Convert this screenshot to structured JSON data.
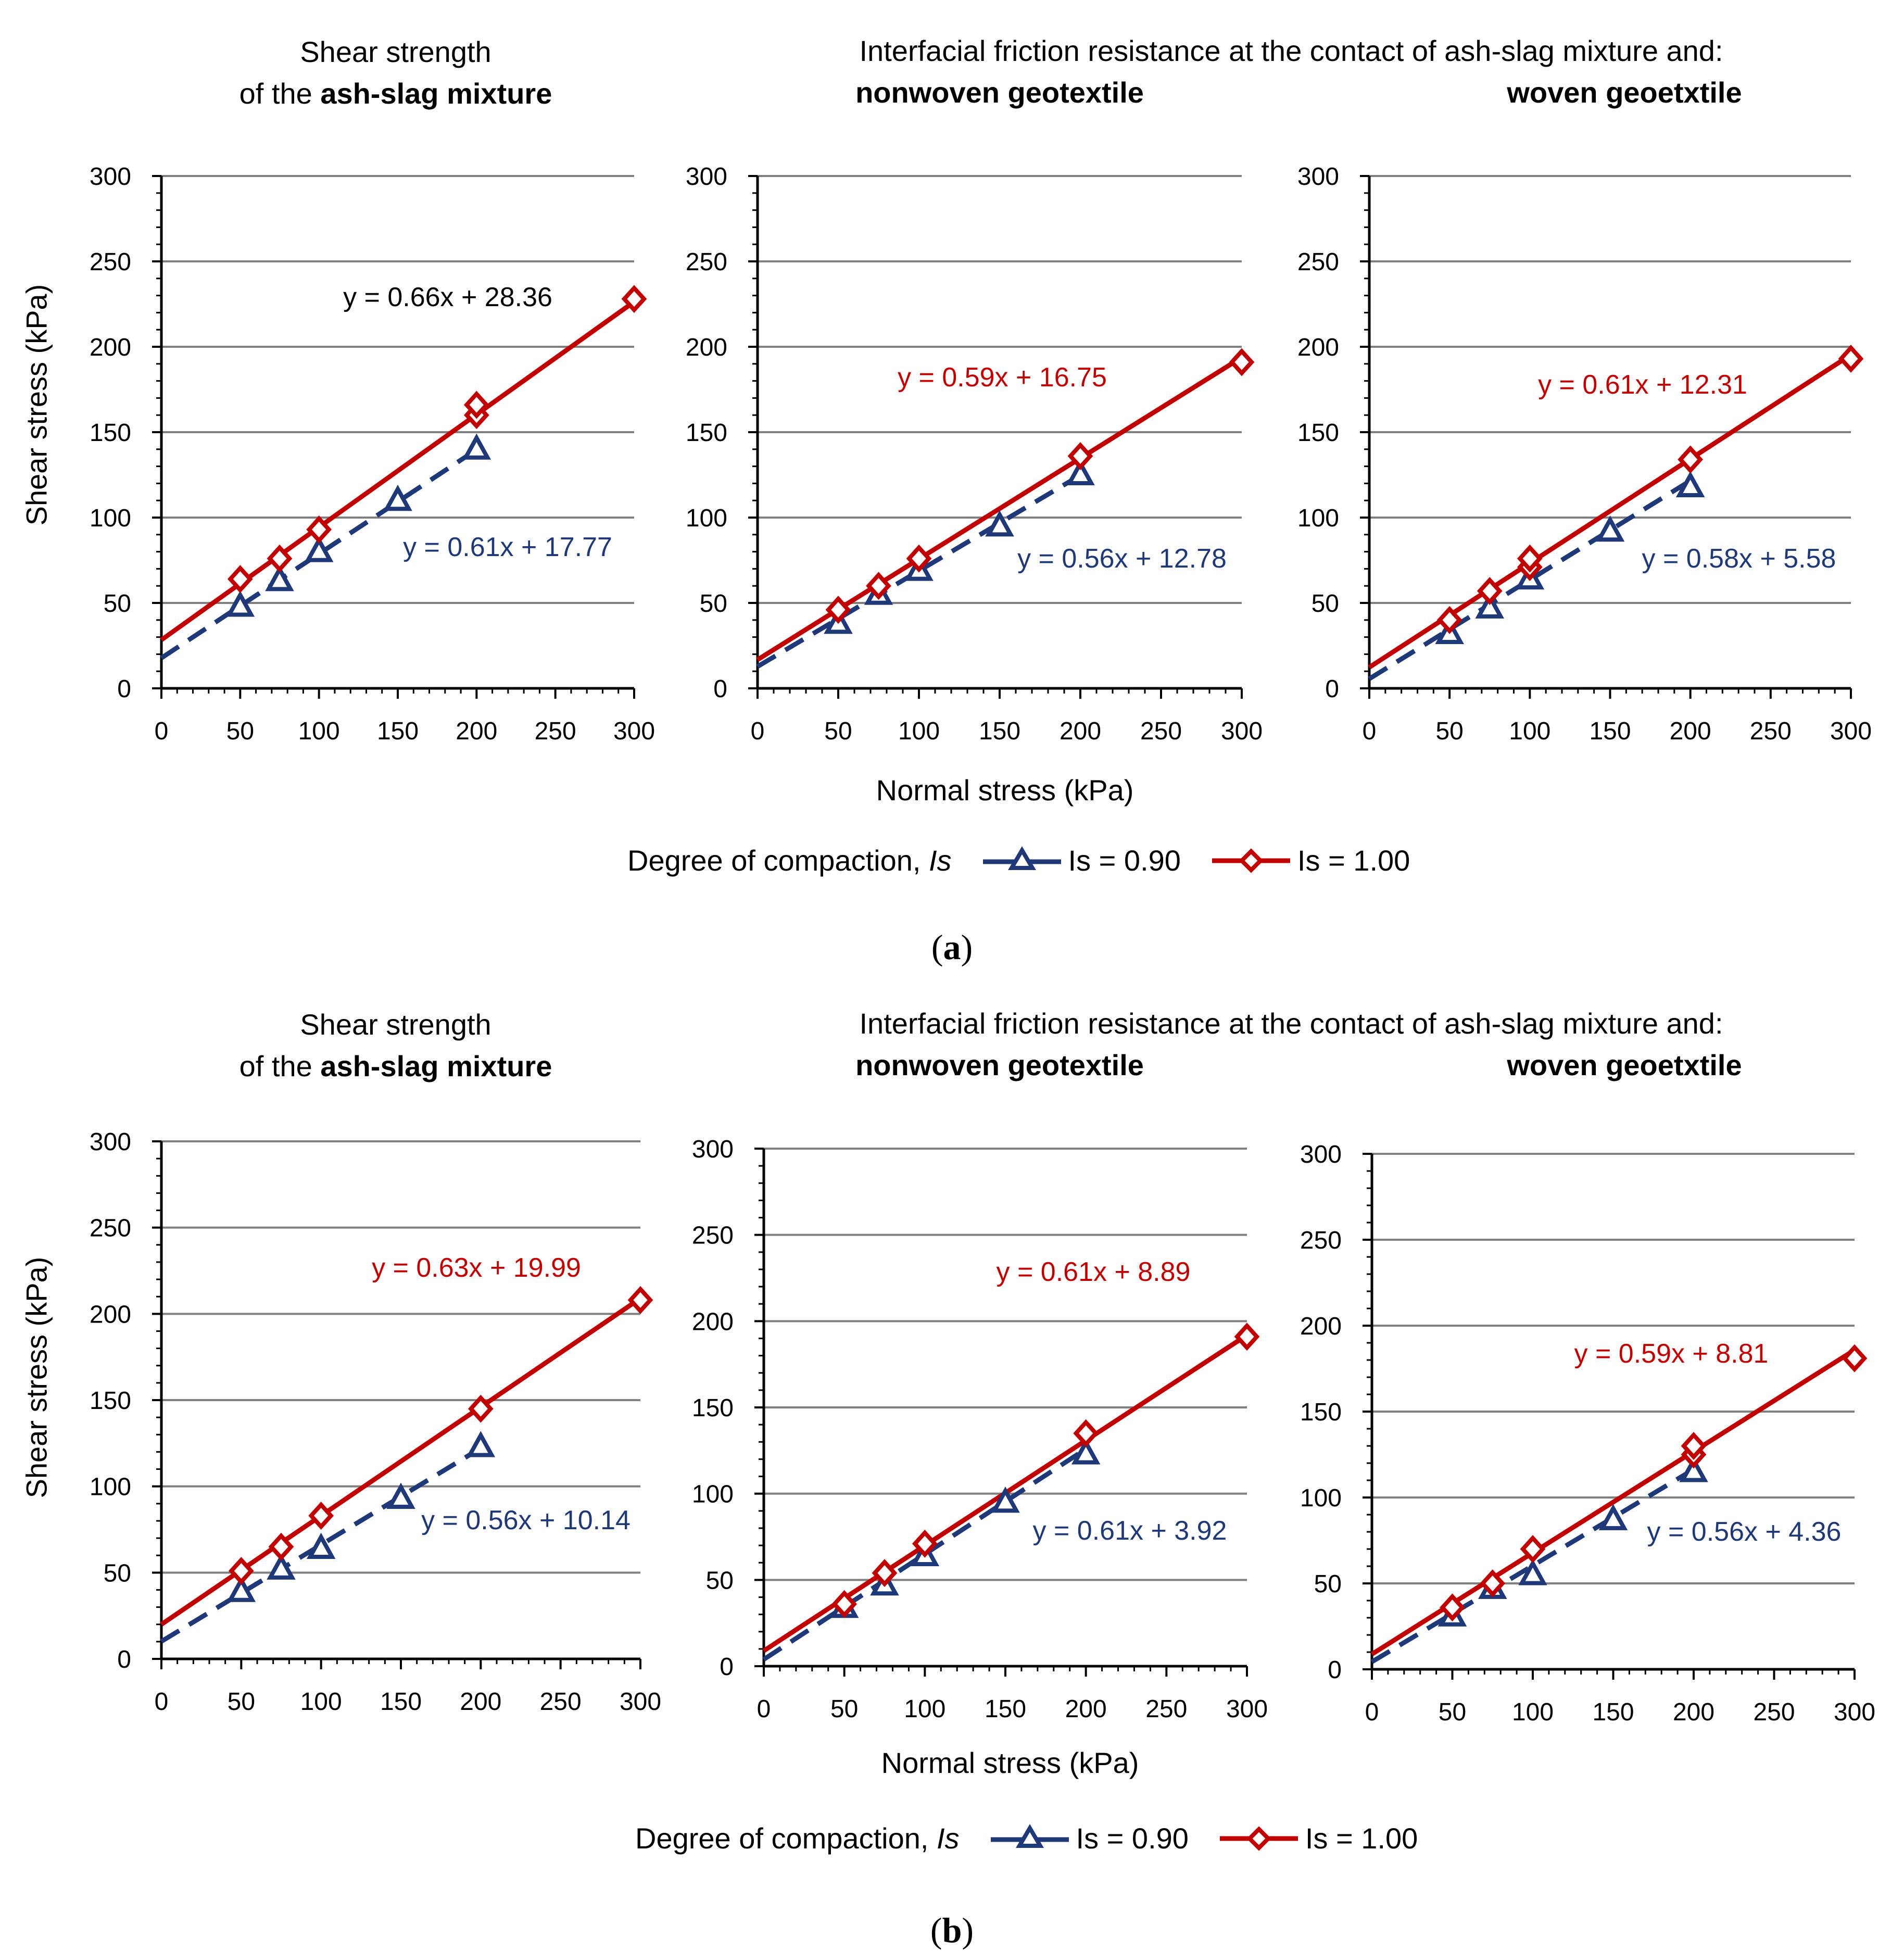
{
  "colors": {
    "red": "#c00000",
    "blue": "#1f3878",
    "grid": "#808080",
    "axis": "#000000"
  },
  "panels": [
    {
      "caption_open": "(",
      "caption_letter": "a",
      "caption_close": ")",
      "titles": {
        "left_line1": "Shear strength",
        "left_line2_pre": "of the ",
        "left_line2_bold": "ash-slag mixture",
        "right_line1": "Interfacial friction resistance at the contact of ash-slag mixture and:",
        "mid_bold": "nonwoven geotextile",
        "right_bold": "woven geoetxtile"
      },
      "ylabel": "Shear stress (kPa)",
      "xlabel": "Normal stress (kPa)",
      "legend": {
        "label": "Degree of compaction,",
        "symbol": "Is",
        "s1": "Is = 0.90",
        "s2": "Is = 1.00"
      }
    },
    {
      "caption_open": "(",
      "caption_letter": "b",
      "caption_close": ")",
      "titles": {
        "left_line1": "Shear strength",
        "left_line2_pre": "of the ",
        "left_line2_bold": "ash-slag mixture",
        "right_line1": "Interfacial friction resistance at the contact of ash-slag mixture and:",
        "mid_bold": "nonwoven geotextile",
        "right_bold": "woven geoetxtile"
      },
      "ylabel": "Shear stress (kPa)",
      "xlabel": "Normal stress (kPa)",
      "legend": {
        "label": "Degree of compaction,",
        "symbol": "Is",
        "s1": "Is = 0.90",
        "s2": "Is = 1.00"
      }
    }
  ],
  "chart_data": [
    {
      "type": "scatter",
      "panel": "a",
      "subplot": "ash-slag mixture",
      "xlim": [
        0,
        300
      ],
      "ylim": [
        0,
        300
      ],
      "xticks": [
        0,
        50,
        100,
        150,
        200,
        250,
        300
      ],
      "yticks": [
        0,
        50,
        100,
        150,
        200,
        250,
        300
      ],
      "series": [
        {
          "name": "Is = 0.90",
          "color": "#1f3878",
          "marker": "triangle",
          "x": [
            50,
            75,
            100,
            150,
            200
          ],
          "y": [
            48,
            63,
            80,
            110,
            140
          ],
          "fit": {
            "slope": 0.61,
            "intercept": 17.77,
            "label": "y = 0.61x + 17.77",
            "label_color": "#1f3878"
          }
        },
        {
          "name": "Is = 1.00",
          "color": "#c00000",
          "marker": "diamond",
          "x": [
            50,
            75,
            100,
            200,
            200,
            300
          ],
          "y": [
            64,
            76,
            93,
            160,
            166,
            228
          ],
          "fit": {
            "slope": 0.66,
            "intercept": 28.36,
            "label": "y = 0.66x + 28.36",
            "label_color": "#000000"
          }
        }
      ]
    },
    {
      "type": "scatter",
      "panel": "a",
      "subplot": "nonwoven geotextile",
      "xlim": [
        0,
        300
      ],
      "ylim": [
        0,
        300
      ],
      "xticks": [
        0,
        50,
        100,
        150,
        200,
        250,
        300
      ],
      "yticks": [
        0,
        50,
        100,
        150,
        200,
        250,
        300
      ],
      "series": [
        {
          "name": "Is = 0.90",
          "color": "#1f3878",
          "marker": "triangle",
          "x": [
            50,
            75,
            100,
            150,
            200
          ],
          "y": [
            38,
            55,
            69,
            95,
            125
          ],
          "fit": {
            "slope": 0.56,
            "intercept": 12.78,
            "label": "y = 0.56x + 12.78",
            "label_color": "#1f3878"
          }
        },
        {
          "name": "Is = 1.00",
          "color": "#c00000",
          "marker": "diamond",
          "x": [
            50,
            75,
            100,
            200,
            300
          ],
          "y": [
            46,
            60,
            76,
            136,
            191
          ],
          "fit": {
            "slope": 0.59,
            "intercept": 16.75,
            "label": "y = 0.59x + 16.75",
            "label_color": "#c00000"
          }
        }
      ]
    },
    {
      "type": "scatter",
      "panel": "a",
      "subplot": "woven geoetxtile",
      "xlim": [
        0,
        300
      ],
      "ylim": [
        0,
        300
      ],
      "xticks": [
        0,
        50,
        100,
        150,
        200,
        250,
        300
      ],
      "yticks": [
        0,
        50,
        100,
        150,
        200,
        250,
        300
      ],
      "series": [
        {
          "name": "Is = 0.90",
          "color": "#1f3878",
          "marker": "triangle",
          "x": [
            50,
            75,
            100,
            150,
            200
          ],
          "y": [
            32,
            47,
            64,
            92,
            118
          ],
          "fit": {
            "slope": 0.58,
            "intercept": 5.58,
            "label": "y = 0.58x + 5.58",
            "label_color": "#1f3878"
          }
        },
        {
          "name": "Is = 1.00",
          "color": "#c00000",
          "marker": "diamond",
          "x": [
            50,
            75,
            100,
            100,
            200,
            300
          ],
          "y": [
            40,
            57,
            71,
            76,
            134,
            193
          ],
          "fit": {
            "slope": 0.61,
            "intercept": 12.31,
            "label": "y = 0.61x + 12.31",
            "label_color": "#c00000"
          }
        }
      ]
    },
    {
      "type": "scatter",
      "panel": "b",
      "subplot": "ash-slag mixture",
      "xlim": [
        0,
        300
      ],
      "ylim": [
        0,
        300
      ],
      "xticks": [
        0,
        50,
        100,
        150,
        200,
        250,
        300
      ],
      "yticks": [
        0,
        50,
        100,
        150,
        200,
        250,
        300
      ],
      "series": [
        {
          "name": "Is = 0.90",
          "color": "#1f3878",
          "marker": "triangle",
          "x": [
            50,
            75,
            100,
            150,
            200
          ],
          "y": [
            39,
            52,
            64,
            93,
            123
          ],
          "fit": {
            "slope": 0.56,
            "intercept": 10.14,
            "label": "y = 0.56x + 10.14",
            "label_color": "#1f3878"
          }
        },
        {
          "name": "Is = 1.00",
          "color": "#c00000",
          "marker": "diamond",
          "x": [
            50,
            75,
            100,
            200,
            300
          ],
          "y": [
            51,
            65,
            83,
            145,
            208
          ],
          "fit": {
            "slope": 0.63,
            "intercept": 19.99,
            "label": "y = 0.63x + 19.99",
            "label_color": "#c00000"
          }
        }
      ]
    },
    {
      "type": "scatter",
      "panel": "b",
      "subplot": "nonwoven geotextile",
      "xlim": [
        0,
        300
      ],
      "ylim": [
        0,
        300
      ],
      "xticks": [
        0,
        50,
        100,
        150,
        200,
        250,
        300
      ],
      "yticks": [
        0,
        50,
        100,
        150,
        200,
        250,
        300
      ],
      "series": [
        {
          "name": "Is = 0.90",
          "color": "#1f3878",
          "marker": "triangle",
          "x": [
            50,
            75,
            100,
            150,
            200
          ],
          "y": [
            34,
            47,
            64,
            95,
            123
          ],
          "fit": {
            "slope": 0.61,
            "intercept": 3.92,
            "label": "y = 0.61x + 3.92",
            "label_color": "#1f3878"
          }
        },
        {
          "name": "Is = 1.00",
          "color": "#c00000",
          "marker": "diamond",
          "x": [
            50,
            75,
            100,
            200,
            300
          ],
          "y": [
            36,
            54,
            71,
            135,
            191
          ],
          "fit": {
            "slope": 0.61,
            "intercept": 8.89,
            "label": "y = 0.61x + 8.89",
            "label_color": "#c00000"
          }
        }
      ]
    },
    {
      "type": "scatter",
      "panel": "b",
      "subplot": "woven geoetxtile",
      "xlim": [
        0,
        300
      ],
      "ylim": [
        0,
        300
      ],
      "xticks": [
        0,
        50,
        100,
        150,
        200,
        250,
        300
      ],
      "yticks": [
        0,
        50,
        100,
        150,
        200,
        250,
        300
      ],
      "series": [
        {
          "name": "Is = 0.90",
          "color": "#1f3878",
          "marker": "triangle",
          "x": [
            50,
            75,
            100,
            150,
            200
          ],
          "y": [
            31,
            47,
            55,
            87,
            115
          ],
          "fit": {
            "slope": 0.56,
            "intercept": 4.36,
            "label": "y = 0.56x + 4.36",
            "label_color": "#1f3878"
          }
        },
        {
          "name": "Is = 1.00",
          "color": "#c00000",
          "marker": "diamond",
          "x": [
            50,
            75,
            100,
            200,
            200,
            300
          ],
          "y": [
            36,
            50,
            70,
            125,
            130,
            181
          ],
          "fit": {
            "slope": 0.59,
            "intercept": 8.81,
            "label": "y = 0.59x + 8.81",
            "label_color": "#c00000"
          }
        }
      ]
    }
  ]
}
